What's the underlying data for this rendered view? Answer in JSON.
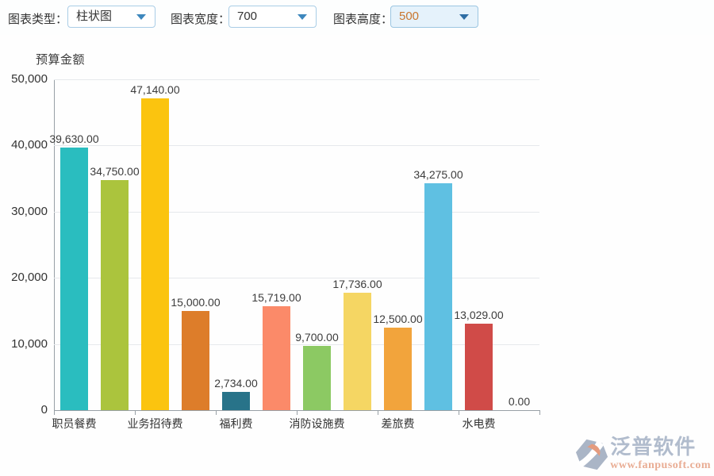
{
  "toolbar": {
    "fields": [
      {
        "label": "图表类型：",
        "value": "柱状图"
      },
      {
        "label": "图表宽度：",
        "value": "700"
      },
      {
        "label": "图表高度：",
        "value": "500"
      }
    ]
  },
  "chart_data": {
    "type": "bar",
    "title": "预算金额",
    "categories": [
      "职员餐费",
      "业务招待费",
      "福利费",
      "消防设施费",
      "差旅费",
      "水电费"
    ],
    "bars_per_category": 2,
    "values": [
      39630,
      34750,
      47140,
      15000,
      2734,
      15719,
      9700,
      17736,
      12500,
      34275,
      13029,
      0
    ],
    "value_labels": [
      "39,630.00",
      "34,750.00",
      "47,140.00",
      "15,000.00",
      "2,734.00",
      "15,719.00",
      "9,700.00",
      "17,736.00",
      "12,500.00",
      "34,275.00",
      "13,029.00",
      "0.00"
    ],
    "bar_colors": [
      "#2abdbf",
      "#abc43d",
      "#fbc40f",
      "#dd7d2a",
      "#287389",
      "#fb8a69",
      "#8cc963",
      "#f5d663",
      "#f2a43c",
      "#5fc0e2",
      "#d04b48",
      "#2abdbf"
    ],
    "ylim": [
      0,
      50000
    ],
    "y_ticks": [
      0,
      10000,
      20000,
      30000,
      40000,
      50000
    ],
    "y_tick_labels": [
      "0",
      "10,000",
      "20,000",
      "30,000",
      "40,000",
      "50,000"
    ],
    "xlabel": "",
    "ylabel": "",
    "grid": true,
    "legend": false
  },
  "watermark": {
    "brand": "泛普软件",
    "url": "www.fanpusoft.com"
  },
  "colors": {
    "accent_blue": "#3d87bd",
    "select_border": "#a9cde6",
    "selected_bg": "#e5f2fb",
    "selected_value_text": "#c9762e",
    "grid_line": "#e6e9ec",
    "axis_line": "#98a0a6",
    "axis_text": "#333333",
    "value_text": "#3c3c3c"
  }
}
